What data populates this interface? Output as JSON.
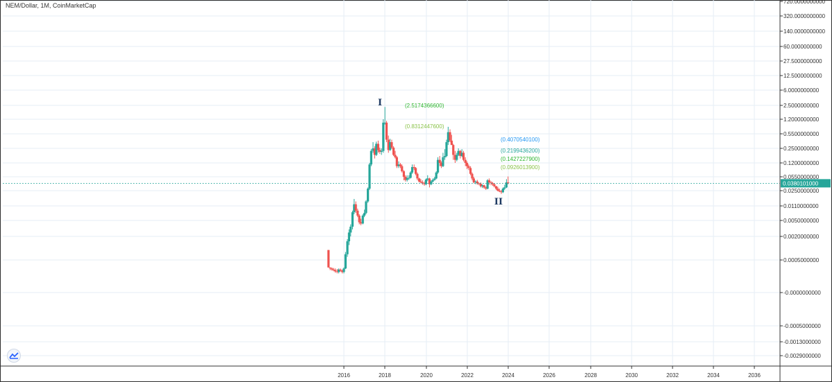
{
  "header": {
    "title": "NEM/Dollar, 1M, CoinMarketCap"
  },
  "colors": {
    "up": "#26a69a",
    "down": "#ef5350",
    "grid": "#e6eef5",
    "price_line": "#26a69a",
    "price_tag": "#26a69a",
    "axis_text": "#333333"
  },
  "icons": {
    "logo": "tradingview-logo-icon"
  },
  "chart_data": {
    "type": "candlestick",
    "title": "NEM/Dollar, 1M, CoinMarketCap",
    "y_scale": "log",
    "grid": true,
    "x_ticks": [
      "2016",
      "2018",
      "2020",
      "2022",
      "2024",
      "2026",
      "2028",
      "2030",
      "2032",
      "2034",
      "2036"
    ],
    "y_ticks": [
      "720.0000000000",
      "320.0000000000",
      "140.0000000000",
      "60.0000000000",
      "27.5000000000",
      "12.5000000000",
      "6.0000000000",
      "2.5000000000",
      "1.2000000000",
      "0.5500000000",
      "0.2500000000",
      "0.1200000000",
      "0.0550000000",
      "0.0250000000",
      "0.0110000000",
      "0.0050000000",
      "0.0020000000",
      "0.0005000000",
      "-0.0000000000",
      "-0.0005000000",
      "-0.0013000000",
      "-0.0029000000"
    ],
    "current_price": "0.0380101000",
    "annotations": [
      {
        "text": "(2.5174366600)",
        "color": "#2fb62f"
      },
      {
        "text": "(0.8312447600)",
        "color": "#8bc34a"
      },
      {
        "text": "(0.4070540100)",
        "color": "#2196f3"
      },
      {
        "text": "(0.2199436200)",
        "color": "#26a69a"
      },
      {
        "text": "(0.1427227900)",
        "color": "#2fb62f"
      },
      {
        "text": "(0.0926013900)",
        "color": "#8bc34a"
      }
    ],
    "wave_labels": [
      "I",
      "II"
    ],
    "ohlc_monthly_approx": [
      [
        2015.25,
        0.0009,
        0.0009,
        0.0003,
        0.0003
      ],
      [
        2015.33,
        0.0003,
        0.0003,
        0.00025,
        0.00028
      ],
      [
        2015.42,
        0.00028,
        0.0003,
        0.00024,
        0.00026
      ],
      [
        2015.5,
        0.00026,
        0.00029,
        0.00023,
        0.00025
      ],
      [
        2015.58,
        0.00025,
        0.00028,
        0.00021,
        0.00023
      ],
      [
        2015.67,
        0.00023,
        0.00027,
        0.0002,
        0.00022
      ],
      [
        2015.75,
        0.00022,
        0.00028,
        0.0002,
        0.00026
      ],
      [
        2015.83,
        0.00026,
        0.00028,
        0.00022,
        0.00024
      ],
      [
        2015.92,
        0.00024,
        0.00026,
        0.0002,
        0.00022
      ],
      [
        2016.0,
        0.00022,
        0.0003,
        0.0002,
        0.00028
      ],
      [
        2016.08,
        0.00028,
        0.0008,
        0.00027,
        0.0007
      ],
      [
        2016.17,
        0.0007,
        0.0017,
        0.0006,
        0.0015
      ],
      [
        2016.25,
        0.0015,
        0.003,
        0.0012,
        0.0025
      ],
      [
        2016.33,
        0.0025,
        0.004,
        0.002,
        0.0035
      ],
      [
        2016.42,
        0.0035,
        0.0085,
        0.003,
        0.0078
      ],
      [
        2016.5,
        0.0078,
        0.016,
        0.007,
        0.012
      ],
      [
        2016.58,
        0.012,
        0.014,
        0.0075,
        0.0085
      ],
      [
        2016.67,
        0.0085,
        0.0095,
        0.006,
        0.0065
      ],
      [
        2016.75,
        0.0065,
        0.007,
        0.004,
        0.0045
      ],
      [
        2016.83,
        0.0045,
        0.0055,
        0.0038,
        0.0042
      ],
      [
        2016.92,
        0.0042,
        0.007,
        0.004,
        0.0065
      ],
      [
        2017.0,
        0.0065,
        0.009,
        0.006,
        0.0075
      ],
      [
        2017.08,
        0.0075,
        0.015,
        0.007,
        0.014
      ],
      [
        2017.17,
        0.014,
        0.03,
        0.013,
        0.028
      ],
      [
        2017.25,
        0.028,
        0.12,
        0.026,
        0.11
      ],
      [
        2017.33,
        0.11,
        0.24,
        0.1,
        0.22
      ],
      [
        2017.42,
        0.22,
        0.35,
        0.2,
        0.25
      ],
      [
        2017.5,
        0.25,
        0.28,
        0.15,
        0.18
      ],
      [
        2017.58,
        0.18,
        0.36,
        0.17,
        0.32
      ],
      [
        2017.67,
        0.32,
        0.38,
        0.2,
        0.23
      ],
      [
        2017.75,
        0.23,
        0.26,
        0.19,
        0.21
      ],
      [
        2017.83,
        0.21,
        0.25,
        0.18,
        0.22
      ],
      [
        2017.92,
        0.22,
        1.2,
        0.2,
        1.0
      ],
      [
        2018.0,
        1.0,
        2.3,
        0.9,
        1.0
      ],
      [
        2018.08,
        1.0,
        1.1,
        0.35,
        0.4
      ],
      [
        2018.17,
        0.4,
        0.5,
        0.2,
        0.23
      ],
      [
        2018.25,
        0.23,
        0.42,
        0.22,
        0.35
      ],
      [
        2018.33,
        0.35,
        0.4,
        0.24,
        0.26
      ],
      [
        2018.42,
        0.26,
        0.28,
        0.17,
        0.18
      ],
      [
        2018.5,
        0.18,
        0.22,
        0.15,
        0.16
      ],
      [
        2018.58,
        0.16,
        0.17,
        0.09,
        0.1
      ],
      [
        2018.67,
        0.1,
        0.13,
        0.09,
        0.11
      ],
      [
        2018.75,
        0.11,
        0.12,
        0.09,
        0.1
      ],
      [
        2018.83,
        0.1,
        0.11,
        0.07,
        0.075
      ],
      [
        2018.92,
        0.075,
        0.08,
        0.045,
        0.055
      ],
      [
        2019.0,
        0.055,
        0.06,
        0.042,
        0.046
      ],
      [
        2019.08,
        0.046,
        0.06,
        0.042,
        0.051
      ],
      [
        2019.17,
        0.051,
        0.06,
        0.046,
        0.052
      ],
      [
        2019.25,
        0.052,
        0.075,
        0.05,
        0.07
      ],
      [
        2019.33,
        0.07,
        0.11,
        0.065,
        0.095
      ],
      [
        2019.42,
        0.095,
        0.11,
        0.08,
        0.09
      ],
      [
        2019.5,
        0.09,
        0.095,
        0.06,
        0.065
      ],
      [
        2019.58,
        0.065,
        0.07,
        0.045,
        0.05
      ],
      [
        2019.67,
        0.05,
        0.052,
        0.04,
        0.042
      ],
      [
        2019.75,
        0.042,
        0.048,
        0.038,
        0.04
      ],
      [
        2019.83,
        0.04,
        0.045,
        0.035,
        0.038
      ],
      [
        2019.92,
        0.038,
        0.042,
        0.033,
        0.036
      ],
      [
        2020.0,
        0.036,
        0.05,
        0.034,
        0.047
      ],
      [
        2020.08,
        0.047,
        0.06,
        0.043,
        0.05
      ],
      [
        2020.17,
        0.05,
        0.052,
        0.03,
        0.036
      ],
      [
        2020.25,
        0.036,
        0.045,
        0.034,
        0.042
      ],
      [
        2020.33,
        0.042,
        0.05,
        0.04,
        0.046
      ],
      [
        2020.42,
        0.046,
        0.055,
        0.044,
        0.05
      ],
      [
        2020.5,
        0.05,
        0.075,
        0.048,
        0.07
      ],
      [
        2020.58,
        0.07,
        0.16,
        0.065,
        0.14
      ],
      [
        2020.67,
        0.14,
        0.17,
        0.1,
        0.12
      ],
      [
        2020.75,
        0.12,
        0.13,
        0.09,
        0.1
      ],
      [
        2020.83,
        0.1,
        0.2,
        0.095,
        0.16
      ],
      [
        2020.92,
        0.16,
        0.24,
        0.14,
        0.17
      ],
      [
        2021.0,
        0.17,
        0.4,
        0.16,
        0.35
      ],
      [
        2021.08,
        0.35,
        0.8,
        0.3,
        0.6
      ],
      [
        2021.17,
        0.6,
        0.7,
        0.35,
        0.38
      ],
      [
        2021.25,
        0.38,
        0.52,
        0.3,
        0.3
      ],
      [
        2021.33,
        0.3,
        0.32,
        0.14,
        0.18
      ],
      [
        2021.42,
        0.18,
        0.22,
        0.12,
        0.14
      ],
      [
        2021.5,
        0.14,
        0.2,
        0.13,
        0.18
      ],
      [
        2021.58,
        0.18,
        0.25,
        0.17,
        0.22
      ],
      [
        2021.67,
        0.22,
        0.23,
        0.15,
        0.17
      ],
      [
        2021.75,
        0.17,
        0.24,
        0.16,
        0.2
      ],
      [
        2021.83,
        0.2,
        0.22,
        0.13,
        0.14
      ],
      [
        2021.92,
        0.14,
        0.16,
        0.1,
        0.12
      ],
      [
        2022.0,
        0.12,
        0.13,
        0.085,
        0.1
      ],
      [
        2022.08,
        0.1,
        0.11,
        0.08,
        0.09
      ],
      [
        2022.17,
        0.09,
        0.1,
        0.06,
        0.065
      ],
      [
        2022.25,
        0.065,
        0.07,
        0.045,
        0.05
      ],
      [
        2022.33,
        0.05,
        0.055,
        0.038,
        0.04
      ],
      [
        2022.42,
        0.04,
        0.045,
        0.036,
        0.042
      ],
      [
        2022.5,
        0.042,
        0.046,
        0.035,
        0.038
      ],
      [
        2022.58,
        0.038,
        0.04,
        0.034,
        0.037
      ],
      [
        2022.67,
        0.037,
        0.04,
        0.03,
        0.032
      ],
      [
        2022.75,
        0.032,
        0.036,
        0.029,
        0.034
      ],
      [
        2022.83,
        0.034,
        0.035,
        0.028,
        0.03
      ],
      [
        2022.92,
        0.03,
        0.032,
        0.026,
        0.028
      ],
      [
        2023.0,
        0.028,
        0.048,
        0.027,
        0.045
      ],
      [
        2023.08,
        0.045,
        0.05,
        0.035,
        0.04
      ],
      [
        2023.17,
        0.04,
        0.043,
        0.034,
        0.038
      ],
      [
        2023.25,
        0.038,
        0.041,
        0.033,
        0.036
      ],
      [
        2023.33,
        0.036,
        0.038,
        0.03,
        0.032
      ],
      [
        2023.42,
        0.032,
        0.033,
        0.026,
        0.028
      ],
      [
        2023.5,
        0.028,
        0.031,
        0.024,
        0.025
      ],
      [
        2023.58,
        0.025,
        0.028,
        0.023,
        0.024
      ],
      [
        2023.67,
        0.024,
        0.026,
        0.021,
        0.023
      ],
      [
        2023.75,
        0.023,
        0.03,
        0.022,
        0.028
      ],
      [
        2023.83,
        0.028,
        0.035,
        0.026,
        0.03
      ],
      [
        2023.92,
        0.03,
        0.048,
        0.029,
        0.04
      ],
      [
        2024.0,
        0.04,
        0.056,
        0.036,
        0.038
      ]
    ]
  }
}
